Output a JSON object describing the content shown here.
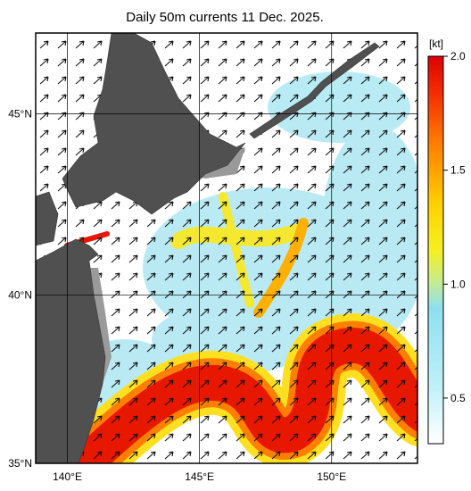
{
  "title": "Daily 50m currents 11 Dec. 2025.",
  "map": {
    "lonlim": [
      138.8,
      153.25
    ],
    "latlim": [
      35,
      47.1
    ],
    "lonticks": [
      {
        "value": 140,
        "label": "140°E"
      },
      {
        "value": 145,
        "label": "145°E"
      },
      {
        "value": 150,
        "label": "150°E"
      }
    ],
    "latticks": [
      {
        "value": 35,
        "label": "35°N"
      },
      {
        "value": 40,
        "label": "40°N"
      },
      {
        "value": 45,
        "label": "45°N"
      }
    ]
  },
  "colorbar": {
    "unit": "[kt]",
    "lim": [
      0.3,
      2
    ],
    "ticks": [
      0.5,
      {
        "value": 1,
        "label": "1.0"
      },
      1.5,
      {
        "value": 2,
        "label": "2.0"
      }
    ]
  }
}
